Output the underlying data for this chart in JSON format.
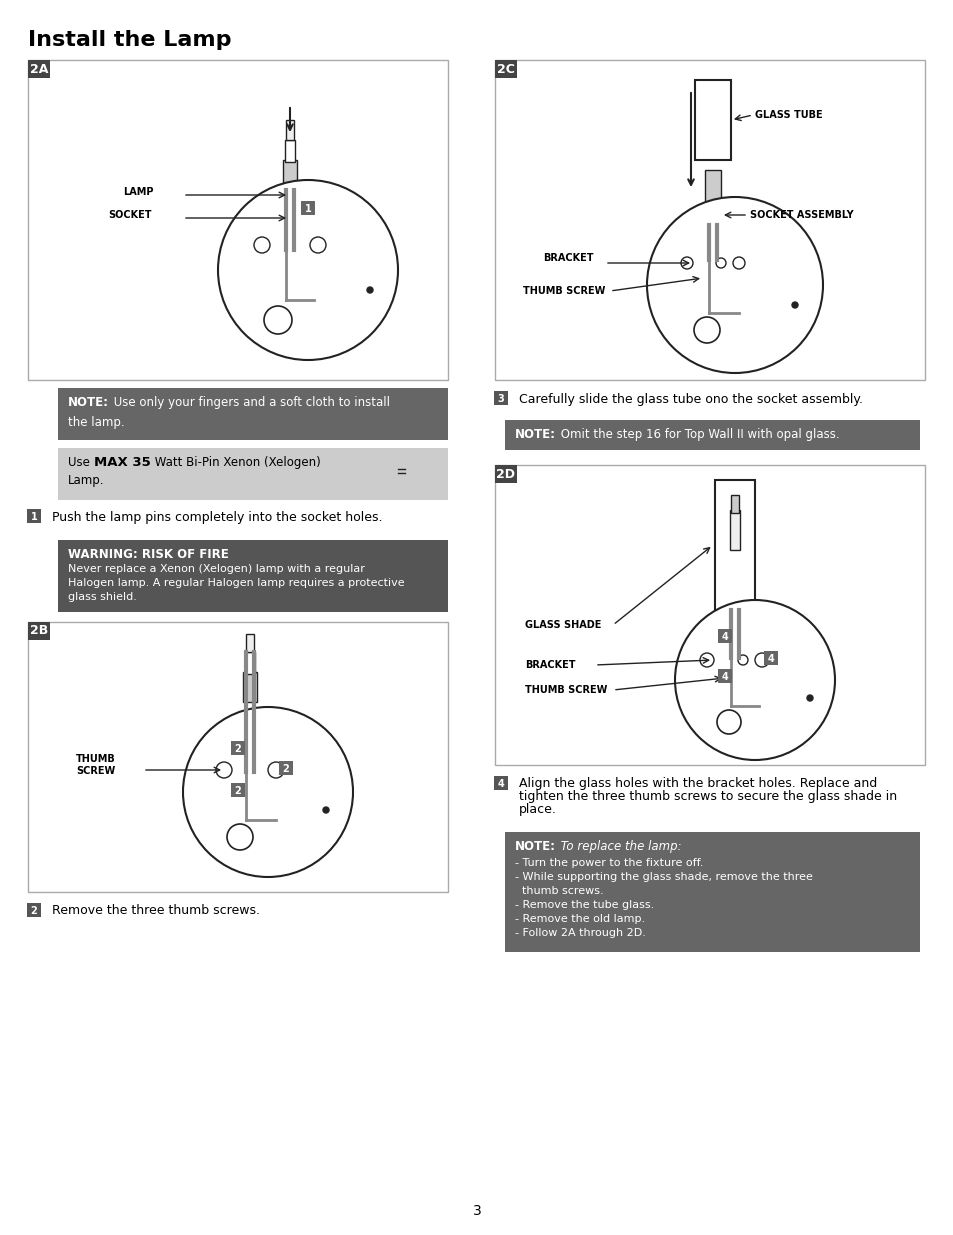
{
  "title": "Install the Lamp",
  "bg_color": "#ffffff",
  "page_number": "3",
  "note1_bg": "#666666",
  "note1_title": "NOTE:",
  "note1_text": "Use only your fingers and a soft cloth to install\nthe lamp.",
  "lamp_box_text": "Use MAX 35 Watt Bi-Pin Xenon (Xelogen)\nLamp.",
  "step1_num": "1",
  "step1_text": "Push the lamp pins completely into the socket holes.",
  "warning_bg": "#555555",
  "warning_title": "WARNING: RISK OF FIRE",
  "warning_text": "Never replace a Xenon (Xelogen) lamp with a regular\nHalogen lamp. A regular Halogen lamp requires a protective\nglass shield.",
  "step2_num": "2",
  "step2_text": "Remove the three thumb screws.",
  "step3_num": "3",
  "step3_text": "Carefully slide the glass tube ono the socket assembly.",
  "note2_bg": "#666666",
  "note2_text": "NOTE: Omit the step 16 for Top Wall II with opal glass.",
  "step4_num": "4",
  "step4_text": "Align the glass holes with the bracket holes. Replace and\ntighten the three thumb screws to secure the glass shade in\nplace.",
  "note3_bg": "#666666",
  "note3_title": "NOTE: To replace the lamp:",
  "note3_text": "- Turn the power to the fixture off.\n- While supporting the glass shade, remove the three\n  thumb screws.\n- Remove the tube glass.\n- Remove the old lamp.\n- Follow 2A through 2D.",
  "label_2a": "2A",
  "label_2b": "2B",
  "label_2c": "2C",
  "label_2d": "2D",
  "panel_bg": "#f8f8f8",
  "panel_border": "#999999",
  "diagram_line_color": "#222222",
  "step_badge_bg": "#555555",
  "step_badge_text": "#ffffff"
}
